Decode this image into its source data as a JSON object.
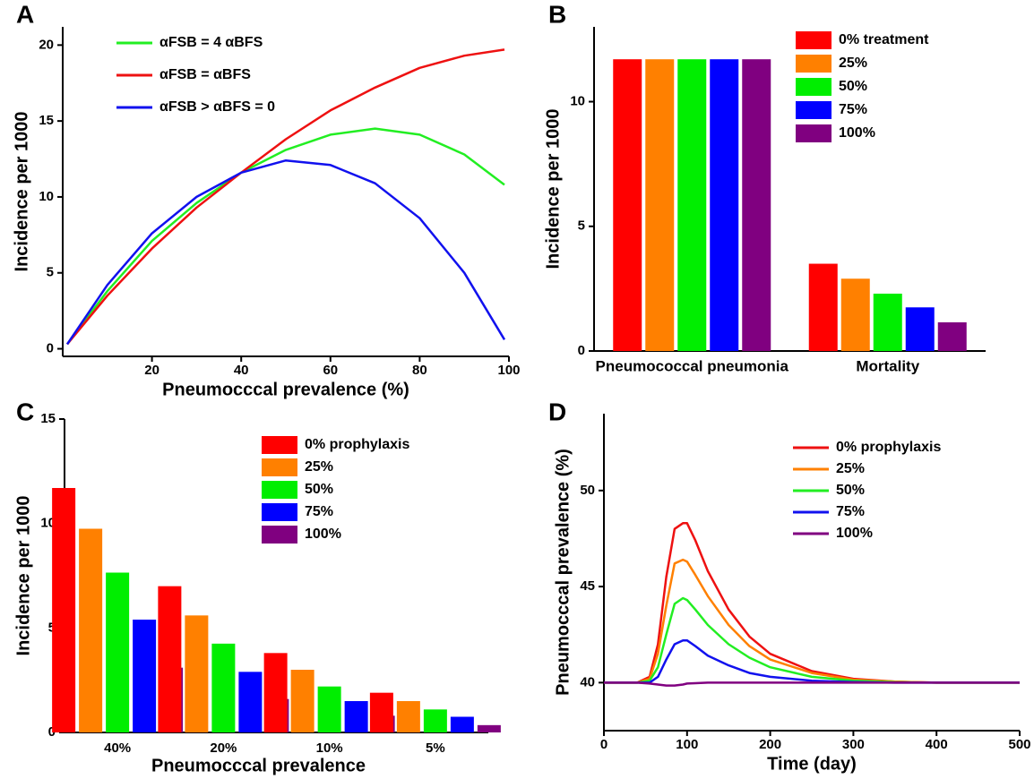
{
  "chart_data": [
    {
      "type": "line",
      "label": "A",
      "x_label": "Pneumocccal prevalence (%)",
      "y_label": "Incidence per 1000",
      "x": [
        1,
        10,
        20,
        30,
        40,
        50,
        60,
        70,
        80,
        90,
        99
      ],
      "series": [
        {
          "name": "αFSB = 4 αBFS",
          "color": "#22ee22",
          "values": [
            0.3,
            3.8,
            7.1,
            9.6,
            11.6,
            13.1,
            14.1,
            14.5,
            14.1,
            12.8,
            10.8
          ]
        },
        {
          "name": "αFSB = αBFS",
          "color": "#ee1111",
          "values": [
            0.3,
            3.5,
            6.6,
            9.3,
            11.6,
            13.8,
            15.7,
            17.2,
            18.5,
            19.3,
            19.7
          ]
        },
        {
          "name": "αFSB > αBFS = 0",
          "color": "#1111ee",
          "values": [
            0.3,
            4.2,
            7.6,
            10.0,
            11.6,
            12.4,
            12.1,
            10.9,
            8.6,
            5.0,
            0.6
          ]
        }
      ],
      "xlim": [
        0,
        100
      ],
      "xticks": [
        20,
        40,
        60,
        80,
        100
      ],
      "ylim": [
        -0.5,
        21.2
      ],
      "yticks": [
        0,
        5,
        10,
        15,
        20
      ]
    },
    {
      "type": "bar",
      "label": "B",
      "y_label": "Incidence per 1000",
      "categories": [
        "Pneumococcal pneumonia",
        "Mortality"
      ],
      "series": [
        {
          "name": "0%  treatment",
          "color": "#ff0000",
          "values": [
            11.7,
            3.5
          ]
        },
        {
          "name": "25%",
          "color": "#ff8000",
          "values": [
            11.7,
            2.9
          ]
        },
        {
          "name": "50%",
          "color": "#00ee00",
          "values": [
            11.7,
            2.3
          ]
        },
        {
          "name": "75%",
          "color": "#0000ff",
          "values": [
            11.7,
            1.75
          ]
        },
        {
          "name": "100%",
          "color": "#800080",
          "values": [
            11.7,
            1.15
          ]
        }
      ],
      "ylim": [
        0,
        13
      ],
      "yticks": [
        0,
        5,
        10
      ]
    },
    {
      "type": "bar",
      "label": "C",
      "x_label": "Pneumocccal prevalence",
      "y_label": "Incidence per 1000",
      "categories": [
        "40%",
        "20%",
        "10%",
        "5%"
      ],
      "series": [
        {
          "name": "0%  prophylaxis",
          "color": "#ff0000",
          "values": [
            11.7,
            7.0,
            3.8,
            1.9
          ]
        },
        {
          "name": "25%",
          "color": "#ff8000",
          "values": [
            9.75,
            5.6,
            3.0,
            1.5
          ]
        },
        {
          "name": "50%",
          "color": "#00ee00",
          "values": [
            7.65,
            4.25,
            2.2,
            1.1
          ]
        },
        {
          "name": "75%",
          "color": "#0000ff",
          "values": [
            5.4,
            2.9,
            1.5,
            0.75
          ]
        },
        {
          "name": "100%",
          "color": "#800080",
          "values": [
            3.1,
            1.6,
            0.8,
            0.35
          ]
        }
      ],
      "ylim": [
        0,
        15
      ],
      "yticks": [
        0,
        5,
        10,
        15
      ]
    },
    {
      "type": "line",
      "label": "D",
      "x_label": "Time (day)",
      "y_label": "Pneumocccal prevalence (%)",
      "x": [
        0,
        40,
        55,
        65,
        75,
        85,
        95,
        100,
        110,
        125,
        150,
        175,
        200,
        250,
        300,
        350,
        400,
        500
      ],
      "series": [
        {
          "name": "0%  prophylaxis",
          "color": "#ee1111",
          "values": [
            40,
            40,
            40.3,
            42,
            45.5,
            48,
            48.3,
            48.3,
            47.4,
            45.8,
            43.8,
            42.4,
            41.5,
            40.6,
            40.2,
            40.05,
            40,
            40
          ]
        },
        {
          "name": "25%",
          "color": "#ff8000",
          "values": [
            40,
            40,
            40.2,
            41.5,
            44,
            46.2,
            46.4,
            46.3,
            45.6,
            44.5,
            43.0,
            41.9,
            41.2,
            40.5,
            40.15,
            40.05,
            40,
            40
          ]
        },
        {
          "name": "50%",
          "color": "#22ee22",
          "values": [
            40,
            40,
            40.1,
            40.8,
            42.5,
            44.1,
            44.4,
            44.3,
            43.8,
            43.0,
            42.0,
            41.3,
            40.8,
            40.3,
            40.1,
            40.02,
            40,
            40
          ]
        },
        {
          "name": "75%",
          "color": "#1111ee",
          "values": [
            40,
            40,
            40,
            40.3,
            41.2,
            42.0,
            42.2,
            42.2,
            41.9,
            41.4,
            40.9,
            40.5,
            40.3,
            40.1,
            40.03,
            40,
            40,
            40
          ]
        },
        {
          "name": "100%",
          "color": "#800080",
          "values": [
            40,
            40,
            39.95,
            39.9,
            39.85,
            39.85,
            39.9,
            39.95,
            39.97,
            40,
            40,
            40,
            40,
            40,
            40,
            40,
            40,
            40
          ]
        }
      ],
      "xlim": [
        0,
        500
      ],
      "xticks": [
        0,
        100,
        200,
        300,
        400,
        500
      ],
      "ylim": [
        37.5,
        54
      ],
      "yticks": [
        40,
        45,
        50
      ]
    }
  ]
}
